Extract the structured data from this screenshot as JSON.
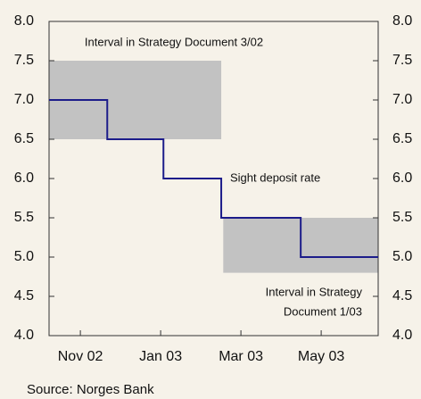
{
  "chart_data": {
    "type": "line",
    "series": [
      {
        "name": "Sight deposit rate",
        "color": "#1c1c8a",
        "step": "post",
        "x": [
          -0.78,
          0.67,
          2.07,
          3.51,
          5.49,
          7.42
        ],
        "values": [
          7.0,
          6.5,
          6.0,
          5.5,
          5.0,
          5.0
        ]
      }
    ],
    "bands": [
      {
        "label": "Interval in Strategy Document 3/02",
        "color": "#c2c2c2",
        "x": [
          -0.78,
          3.51
        ],
        "y": [
          6.5,
          7.5
        ]
      },
      {
        "label": [
          "Interval in Strategy",
          "Document 1/03"
        ],
        "color": "#c2c2c2",
        "x": [
          3.56,
          7.42
        ],
        "y": [
          4.8,
          5.5
        ]
      }
    ],
    "annotations": [
      "Sight deposit rate"
    ],
    "source": "Source: Norges Bank",
    "xlim": [
      -0.78,
      7.42
    ],
    "xticks": [
      {
        "value": 0,
        "label": "Nov 02"
      },
      {
        "value": 2,
        "label": "Jan 03"
      },
      {
        "value": 4,
        "label": "Mar 03"
      },
      {
        "value": 6,
        "label": "May 03"
      }
    ],
    "ylim": [
      4,
      8
    ],
    "yticks": [
      {
        "value": 4,
        "label": "4.0"
      },
      {
        "value": 4.5,
        "label": "4.5"
      },
      {
        "value": 5,
        "label": "5.0"
      },
      {
        "value": 5.5,
        "label": "5.5"
      },
      {
        "value": 6,
        "label": "6.0"
      },
      {
        "value": 6.5,
        "label": "6.5"
      },
      {
        "value": 7,
        "label": "7.0"
      },
      {
        "value": 7.5,
        "label": "7.5"
      },
      {
        "value": 8,
        "label": "8.0"
      }
    ],
    "y2lim": [
      4,
      8
    ],
    "y2ticks": [
      {
        "value": 4,
        "label": "4.0"
      },
      {
        "value": 4.5,
        "label": "4.5"
      },
      {
        "value": 5,
        "label": "5.0"
      },
      {
        "value": 5.5,
        "label": "5.5"
      },
      {
        "value": 6,
        "label": "6.0"
      },
      {
        "value": 6.5,
        "label": "6.5"
      },
      {
        "value": 7,
        "label": "7.0"
      },
      {
        "value": 7.5,
        "label": "7.5"
      },
      {
        "value": 8,
        "label": "8.0"
      }
    ]
  }
}
